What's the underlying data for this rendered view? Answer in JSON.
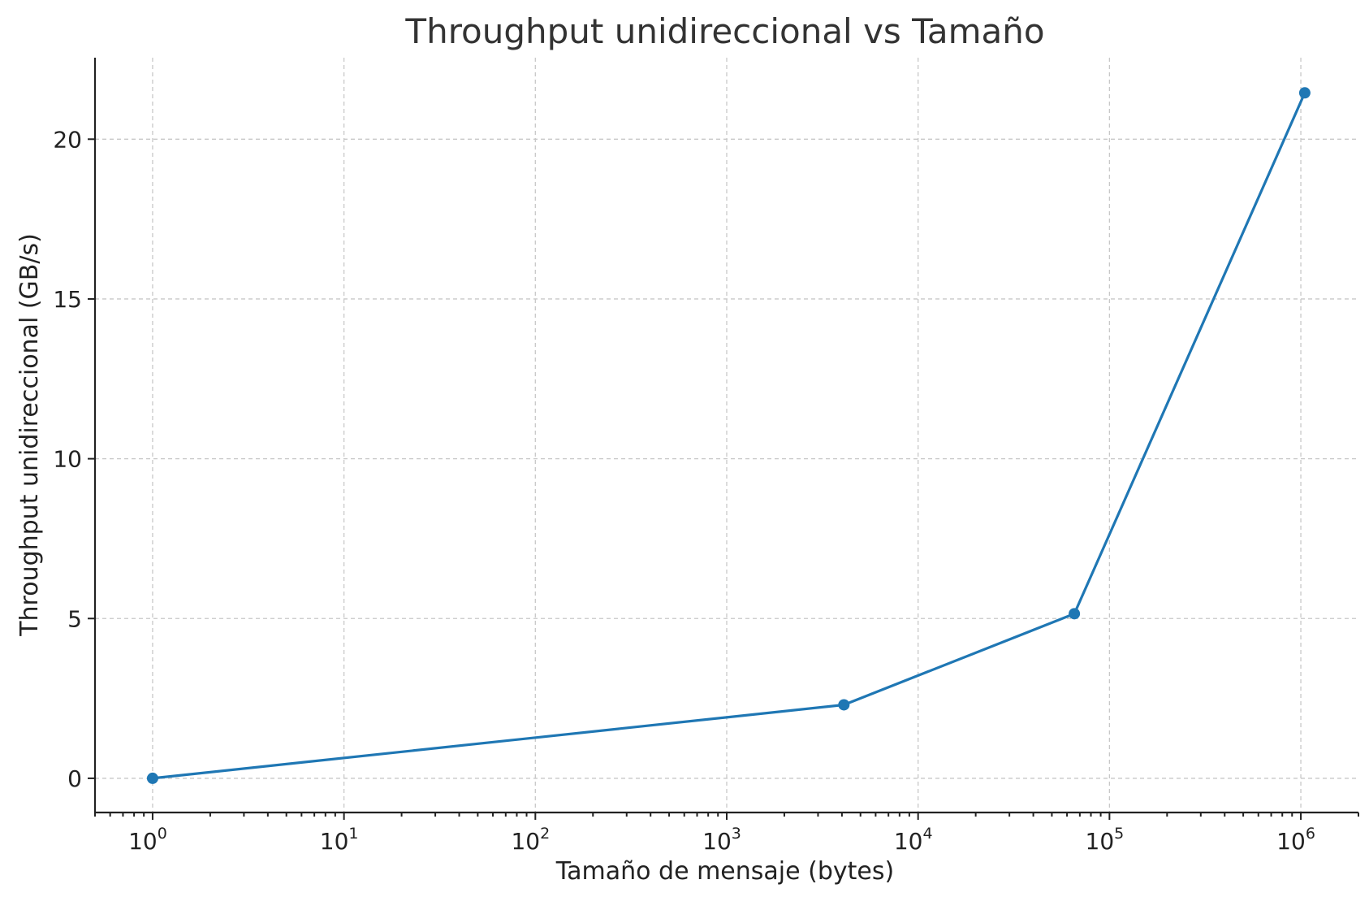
{
  "chart_data": {
    "type": "line",
    "title": "Throughput unidireccional vs Tamaño",
    "xlabel": "Tamaño de mensaje (bytes)",
    "ylabel": "Throughput unidireccional (GB/s)",
    "x_scale": "log",
    "x_ticks": [
      "10^0",
      "10^1",
      "10^2",
      "10^3",
      "10^4",
      "10^5",
      "10^6"
    ],
    "y_ticks": [
      "0",
      "5",
      "10",
      "15",
      "20"
    ],
    "xlim": [
      0.5,
      2000000
    ],
    "ylim": [
      -1.07,
      22.55
    ],
    "grid": true,
    "series": [
      {
        "x": [
          1,
          4096,
          65536,
          1048576
        ],
        "y": [
          0.0,
          2.3,
          5.15,
          21.45
        ],
        "color": "#1f77b4",
        "marker": "circle"
      }
    ]
  }
}
